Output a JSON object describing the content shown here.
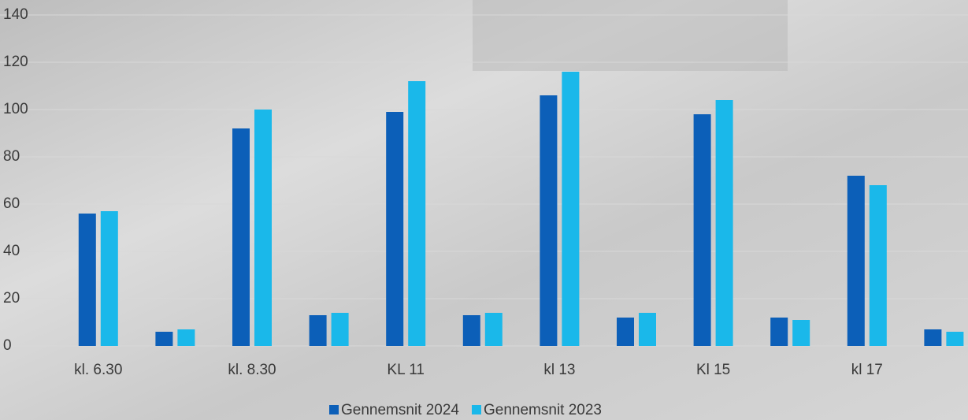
{
  "chart_data": {
    "type": "bar",
    "categories": [
      "kl. 6.30",
      null,
      "kl. 8.30",
      null,
      "KL 11",
      null,
      "kl 13",
      null,
      "Kl 15",
      null,
      "kl 17",
      null
    ],
    "series": [
      {
        "name": "Gennemsnit 2024",
        "color": "#0c5fb8",
        "values": [
          56,
          6,
          92,
          13,
          99,
          13,
          106,
          12,
          98,
          12,
          72,
          7
        ]
      },
      {
        "name": "Gennemsnit 2023",
        "color": "#1ab8ea",
        "values": [
          57,
          7,
          100,
          14,
          112,
          14,
          116,
          14,
          104,
          11,
          68,
          6
        ]
      }
    ],
    "ylim": [
      0,
      140
    ],
    "yticks": [
      0,
      20,
      40,
      60,
      80,
      100,
      120,
      140
    ],
    "grid": true,
    "legend": "bottom"
  }
}
